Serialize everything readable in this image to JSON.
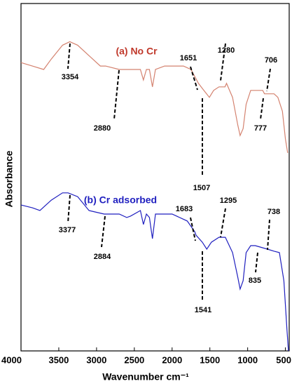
{
  "chart_data": {
    "type": "line",
    "x_label": "Wavenumber cm⁻¹",
    "y_label": "Absorbance",
    "xlim": [
      4000,
      450
    ],
    "xticks": [
      4000,
      3500,
      3000,
      2500,
      2000,
      1500,
      1000,
      500
    ],
    "ylim": [
      0,
      100
    ],
    "series": [
      {
        "name": "(a) No Cr",
        "color": "#d4826f",
        "x": [
          4000,
          3850,
          3700,
          3600,
          3450,
          3354,
          3250,
          3100,
          2950,
          2880,
          2700,
          2500,
          2420,
          2380,
          2340,
          2300,
          2260,
          2220,
          2100,
          2000,
          1850,
          1750,
          1651,
          1580,
          1507,
          1450,
          1380,
          1300,
          1280,
          1200,
          1130,
          1100,
          1060,
          1020,
          960,
          900,
          800,
          777,
          706,
          650,
          600,
          540,
          500,
          470
        ],
        "values": [
          83,
          82,
          81,
          84,
          88,
          89,
          88,
          85,
          82,
          82,
          81,
          81,
          81,
          78,
          81,
          81,
          76,
          81,
          82,
          82,
          82,
          81,
          77,
          75,
          73,
          75,
          76,
          76,
          77,
          73,
          65,
          62,
          64,
          71,
          75,
          75,
          75,
          74,
          74,
          74,
          73,
          69,
          61,
          57
        ]
      },
      {
        "name": "(b) Cr adsorbed",
        "color": "#1f1fbf",
        "x": [
          4000,
          3850,
          3750,
          3600,
          3450,
          3377,
          3250,
          3100,
          2900,
          2700,
          2600,
          2550,
          2420,
          2380,
          2340,
          2300,
          2260,
          2220,
          2000,
          1800,
          1700,
          1683,
          1600,
          1541,
          1480,
          1380,
          1295,
          1200,
          1130,
          1100,
          1060,
          1020,
          960,
          900,
          835,
          738,
          650,
          580,
          520,
          480,
          460
        ],
        "values": [
          42,
          41.2,
          40.4,
          43.4,
          45.5,
          45.5,
          44.4,
          40.4,
          39.4,
          39.4,
          38.4,
          38.8,
          40.4,
          36.4,
          39.4,
          38.4,
          32.3,
          39.4,
          39.4,
          37.4,
          34.3,
          33.3,
          31.3,
          29.3,
          31.3,
          32.7,
          32.7,
          28.3,
          21.2,
          17.8,
          20.2,
          28.3,
          30.3,
          30.3,
          29.9,
          29.3,
          28.7,
          28.3,
          20.2,
          6.1,
          0
        ]
      }
    ],
    "annotations": [
      "3354",
      "2880",
      "1651",
      "1280",
      "706",
      "777",
      "1507",
      "3377",
      "2884",
      "1683",
      "1295",
      "738",
      "835",
      "1541"
    ]
  }
}
